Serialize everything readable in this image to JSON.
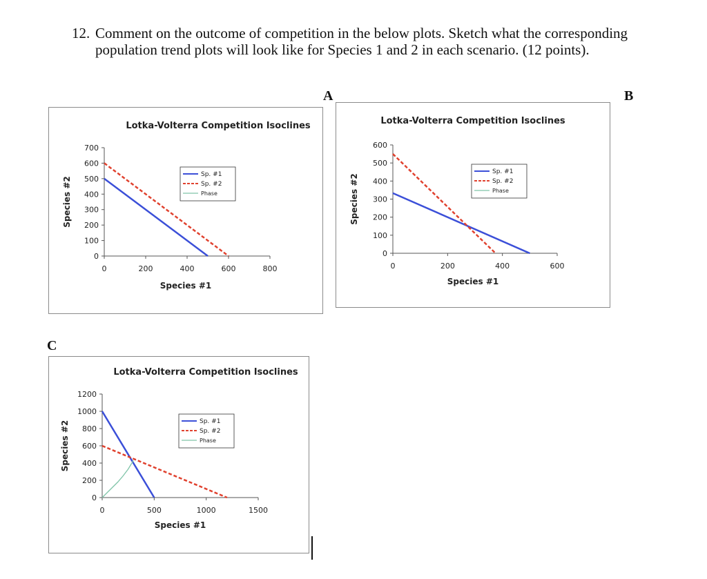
{
  "question": {
    "number": "12.",
    "text": "Comment on the outcome of competition in the below plots. Sketch what the corresponding population trend plots will look like for Species 1 and 2 in each scenario. (12 points)."
  },
  "panel_labels": [
    "A",
    "B",
    "C"
  ],
  "colors": {
    "sp1": "#3b4fd8",
    "sp2": "#e0412e",
    "phase": "#7fc4a8",
    "axis": "#555555",
    "frame": "#8a8a8a"
  },
  "chart_data": [
    {
      "id": "A",
      "type": "line",
      "title": "Lotka-Volterra Competition Isoclines",
      "xlabel": "Species #1",
      "ylabel": "Species #2",
      "xlim": [
        0,
        800
      ],
      "ylim": [
        0,
        700
      ],
      "xticks": [
        0,
        200,
        400,
        600,
        800
      ],
      "yticks": [
        0,
        100,
        200,
        300,
        400,
        500,
        600,
        700
      ],
      "legend_entries": [
        "Sp. #1",
        "Sp. #2",
        "Phase"
      ],
      "series": [
        {
          "name": "Sp. #1",
          "style": "solid",
          "x": [
            0,
            500
          ],
          "y": [
            500,
            0
          ]
        },
        {
          "name": "Sp. #2",
          "style": "dashed",
          "x": [
            0,
            600
          ],
          "y": [
            600,
            0
          ]
        }
      ]
    },
    {
      "id": "B",
      "type": "line",
      "title": "Lotka-Volterra Competition Isoclines",
      "xlabel": "Species #1",
      "ylabel": "Species #2",
      "xlim": [
        0,
        600
      ],
      "ylim": [
        0,
        600
      ],
      "xticks": [
        0,
        200,
        400,
        600
      ],
      "yticks": [
        0,
        100,
        200,
        300,
        400,
        500,
        600
      ],
      "legend_entries": [
        "Sp. #1",
        "Sp. #2",
        "Phase"
      ],
      "series": [
        {
          "name": "Sp. #1",
          "style": "solid",
          "x": [
            0,
            500
          ],
          "y": [
            333,
            0
          ]
        },
        {
          "name": "Sp. #2",
          "style": "dashed",
          "x": [
            0,
            375
          ],
          "y": [
            550,
            0
          ]
        }
      ]
    },
    {
      "id": "C",
      "type": "line",
      "title": "Lotka-Volterra Competition Isoclines",
      "xlabel": "Species #1",
      "ylabel": "Species #2",
      "xlim": [
        0,
        1500
      ],
      "ylim": [
        0,
        1200
      ],
      "xticks": [
        0,
        500,
        1000,
        1500
      ],
      "yticks": [
        0,
        200,
        400,
        600,
        800,
        1000,
        1200
      ],
      "legend_entries": [
        "Sp. #1",
        "Sp. #2",
        "Phase"
      ],
      "series": [
        {
          "name": "Sp. #1",
          "style": "solid",
          "x": [
            0,
            500
          ],
          "y": [
            1000,
            0
          ]
        },
        {
          "name": "Sp. #2",
          "style": "dashed",
          "x": [
            0,
            1200
          ],
          "y": [
            600,
            0
          ]
        },
        {
          "name": "Phase",
          "style": "solid",
          "x": [
            0,
            50,
            100,
            150,
            200,
            250,
            300
          ],
          "y": [
            0,
            60,
            120,
            180,
            250,
            330,
            430
          ]
        }
      ]
    }
  ]
}
